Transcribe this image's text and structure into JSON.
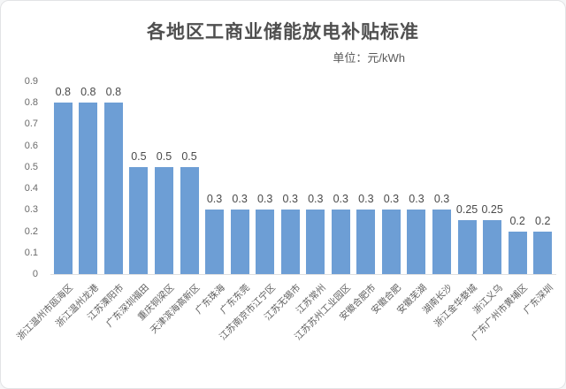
{
  "header": {
    "title": "各地区工商业储能放电补贴标准",
    "unit_label": "单位：元/kWh"
  },
  "chart_data": {
    "type": "bar",
    "title": "各地区工商业储能放电补贴标准",
    "unit": "元/kWh",
    "categories": [
      "浙江温州市瓯海区",
      "浙江温州龙港",
      "江苏溧阳市",
      "广东深圳福田",
      "重庆铜梁区",
      "天津滨海高新区",
      "广东珠海",
      "广东东莞",
      "江苏南京市江宁区",
      "江苏无锡市",
      "江苏常州",
      "江苏苏州工业园区",
      "安徽合肥市",
      "安徽合肥",
      "安徽芜湖",
      "湖南长沙",
      "浙江金华婺城",
      "浙江义乌",
      "广东广州市黄埔区",
      "广东深圳"
    ],
    "values": [
      0.8,
      0.8,
      0.8,
      0.5,
      0.5,
      0.5,
      0.3,
      0.3,
      0.3,
      0.3,
      0.3,
      0.3,
      0.3,
      0.3,
      0.3,
      0.3,
      0.25,
      0.25,
      0.2,
      0.2
    ],
    "xlabel": "",
    "ylabel": "",
    "ylim": [
      0,
      0.9
    ],
    "yticks": [
      "0",
      "0.1",
      "0.2",
      "0.3",
      "0.4",
      "0.5",
      "0.6",
      "0.7",
      "0.8",
      "0.9"
    ],
    "grid": false,
    "legend": "none",
    "data_labels": true,
    "bar_color": "#6d9ed5",
    "axis_line_color": "#e0e0e0",
    "label_color": "#5f5f5f"
  }
}
